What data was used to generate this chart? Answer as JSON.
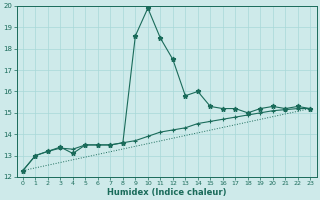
{
  "xlabel": "Humidex (Indice chaleur)",
  "bg_color": "#ceeaea",
  "line_color": "#1a6b5a",
  "grid_color": "#a8d8d8",
  "xlim": [
    -0.5,
    23.5
  ],
  "ylim": [
    12,
    20
  ],
  "xticks": [
    0,
    1,
    2,
    3,
    4,
    5,
    6,
    7,
    8,
    9,
    10,
    11,
    12,
    13,
    14,
    15,
    16,
    17,
    18,
    19,
    20,
    21,
    22,
    23
  ],
  "yticks": [
    12,
    13,
    14,
    15,
    16,
    17,
    18,
    19,
    20
  ],
  "series1_x": [
    0,
    1,
    2,
    3,
    4,
    5,
    6,
    7,
    8,
    9,
    10,
    11,
    12,
    13,
    14,
    15,
    16,
    17,
    18,
    19,
    20,
    21,
    22,
    23
  ],
  "series1_y": [
    12.3,
    13.0,
    13.2,
    13.4,
    13.1,
    13.5,
    13.5,
    13.5,
    13.6,
    18.6,
    19.9,
    18.5,
    17.5,
    15.8,
    16.0,
    15.3,
    15.2,
    15.2,
    15.0,
    15.2,
    15.3,
    15.2,
    15.3,
    15.2
  ],
  "series2_x": [
    0,
    1,
    2,
    3,
    4,
    5,
    6,
    7,
    8,
    9,
    10,
    11,
    12,
    13,
    14,
    15,
    16,
    17,
    18,
    19,
    20,
    21,
    22,
    23
  ],
  "series2_y": [
    12.3,
    13.0,
    13.2,
    13.35,
    13.3,
    13.5,
    13.5,
    13.5,
    13.6,
    13.7,
    13.9,
    14.1,
    14.2,
    14.3,
    14.5,
    14.6,
    14.7,
    14.8,
    14.9,
    15.0,
    15.1,
    15.15,
    15.2,
    15.2
  ],
  "series3_x": [
    0,
    23
  ],
  "series3_y": [
    12.3,
    15.2
  ]
}
